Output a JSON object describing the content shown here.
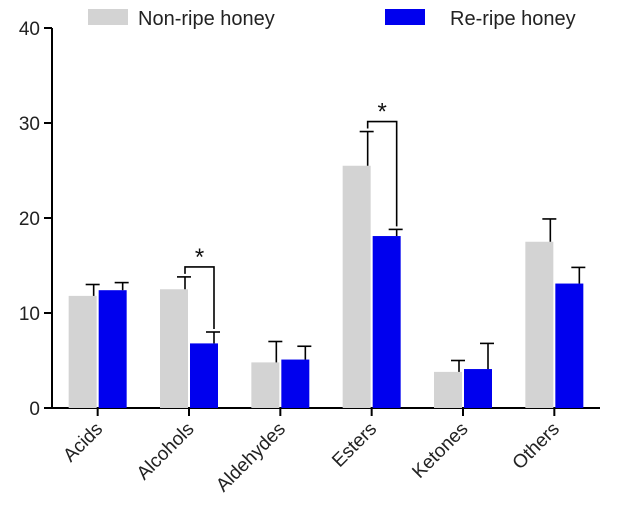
{
  "chart_data": {
    "type": "bar",
    "categories": [
      "Acids",
      "Alcohols",
      "Aldehydes",
      "Esters",
      "Ketones",
      "Others"
    ],
    "series": [
      {
        "name": "Non-ripe honey",
        "color": "#d3d3d3",
        "values": [
          11.8,
          12.5,
          4.8,
          25.5,
          3.8,
          17.5
        ],
        "errors": [
          1.2,
          1.3,
          2.2,
          3.6,
          1.2,
          2.4
        ]
      },
      {
        "name": "Re-ripe honey",
        "color": "#0000ee",
        "values": [
          12.4,
          6.8,
          5.1,
          18.1,
          4.1,
          13.1
        ],
        "errors": [
          0.8,
          1.2,
          1.4,
          0.7,
          2.7,
          1.7
        ]
      }
    ],
    "ylim": [
      0,
      40
    ],
    "yticks": [
      "0",
      "10",
      "20",
      "30",
      "40"
    ],
    "xlabel": "",
    "ylabel": "",
    "legend_position": "top",
    "significance": [
      {
        "category": "Alcohols",
        "label": "*"
      },
      {
        "category": "Esters",
        "label": "*"
      }
    ]
  }
}
